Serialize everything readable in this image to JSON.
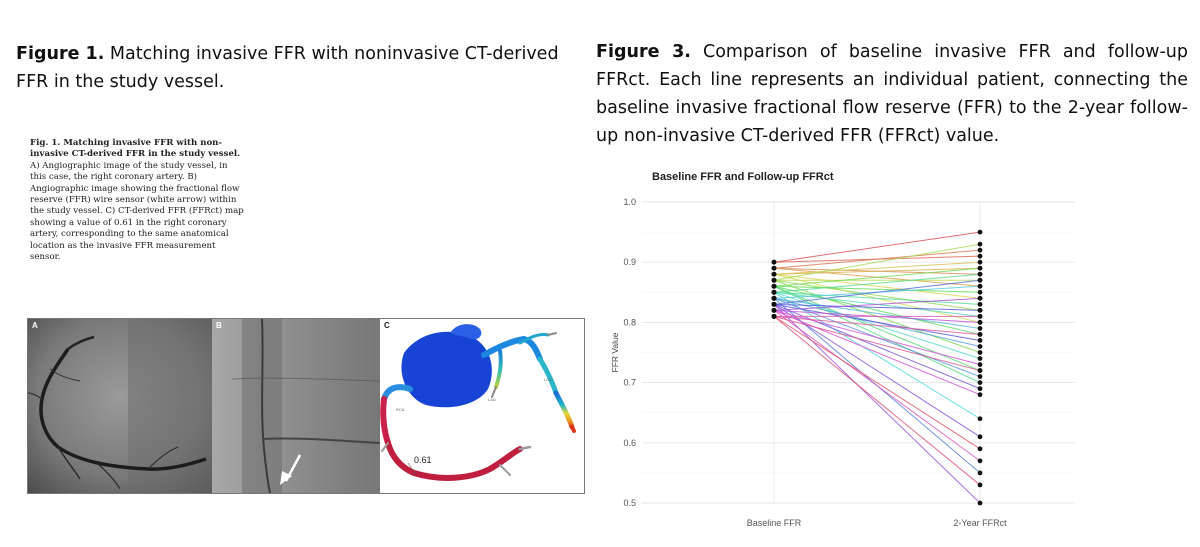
{
  "figure1": {
    "label": "Figure 1.",
    "text": " Matching invasive FFR with noninvasive CT-derived FFR in the study vessel."
  },
  "figure3": {
    "label": "Figure 3.",
    "text": " Comparison of baseline invasive FFR and follow-up FFRct. Each line represents an individual patient, connecting the baseline invasive fractional flow reserve (FFR) to the 2-year follow-up non-invasive CT-derived FFR (FFRct) value."
  },
  "inset": {
    "title": "Fig. 1. Matching invasive FFR with non-invasive CT-derived FFR in the study vessel.",
    "body": "A) Angiographic image of the study vessel, in this case, the right coronary artery. B) Angiographic image showing the fractional flow reserve (FFR) wire sensor (white arrow) within the study vessel. C) CT-derived FFR (FFRct) map showing a value of 0.61 in the right coronary artery, corresponding to the same anatomical location as the invasive FFR measurement sensor.",
    "panels": [
      "A",
      "B",
      "C"
    ],
    "ffrct_value": "0.61",
    "vessel_labels": [
      "RCA",
      "LAD",
      "LCX"
    ]
  },
  "chart_data": {
    "type": "line",
    "title": "Baseline FFR and Follow-up FFRct",
    "xlabel": "",
    "ylabel": "FFR Value",
    "categories": [
      "Baseline FFR",
      "2-Year FFRct"
    ],
    "ylim": [
      0.5,
      1.0
    ],
    "yticks": [
      "0.5",
      "0.6",
      "0.7",
      "0.8",
      "0.9",
      "1.0"
    ],
    "grid": true,
    "legend": "none",
    "pairs": [
      [
        0.9,
        0.95
      ],
      [
        0.9,
        0.91
      ],
      [
        0.89,
        0.92
      ],
      [
        0.89,
        0.88
      ],
      [
        0.89,
        0.86
      ],
      [
        0.88,
        0.89
      ],
      [
        0.88,
        0.9
      ],
      [
        0.88,
        0.84
      ],
      [
        0.88,
        0.8
      ],
      [
        0.87,
        0.87
      ],
      [
        0.87,
        0.93
      ],
      [
        0.87,
        0.82
      ],
      [
        0.87,
        0.75
      ],
      [
        0.86,
        0.89
      ],
      [
        0.86,
        0.85
      ],
      [
        0.86,
        0.78
      ],
      [
        0.86,
        0.72
      ],
      [
        0.86,
        0.7
      ],
      [
        0.85,
        0.88
      ],
      [
        0.85,
        0.83
      ],
      [
        0.85,
        0.81
      ],
      [
        0.85,
        0.74
      ],
      [
        0.85,
        0.64
      ],
      [
        0.84,
        0.86
      ],
      [
        0.84,
        0.79
      ],
      [
        0.84,
        0.76
      ],
      [
        0.84,
        0.71
      ],
      [
        0.84,
        0.55
      ],
      [
        0.83,
        0.87
      ],
      [
        0.83,
        0.82
      ],
      [
        0.83,
        0.77
      ],
      [
        0.83,
        0.69
      ],
      [
        0.83,
        0.61
      ],
      [
        0.83,
        0.5
      ],
      [
        0.82,
        0.84
      ],
      [
        0.82,
        0.8
      ],
      [
        0.82,
        0.73
      ],
      [
        0.82,
        0.68
      ],
      [
        0.82,
        0.57
      ],
      [
        0.81,
        0.81
      ],
      [
        0.81,
        0.78
      ],
      [
        0.81,
        0.72
      ],
      [
        0.81,
        0.53
      ],
      [
        0.81,
        0.59
      ]
    ]
  }
}
